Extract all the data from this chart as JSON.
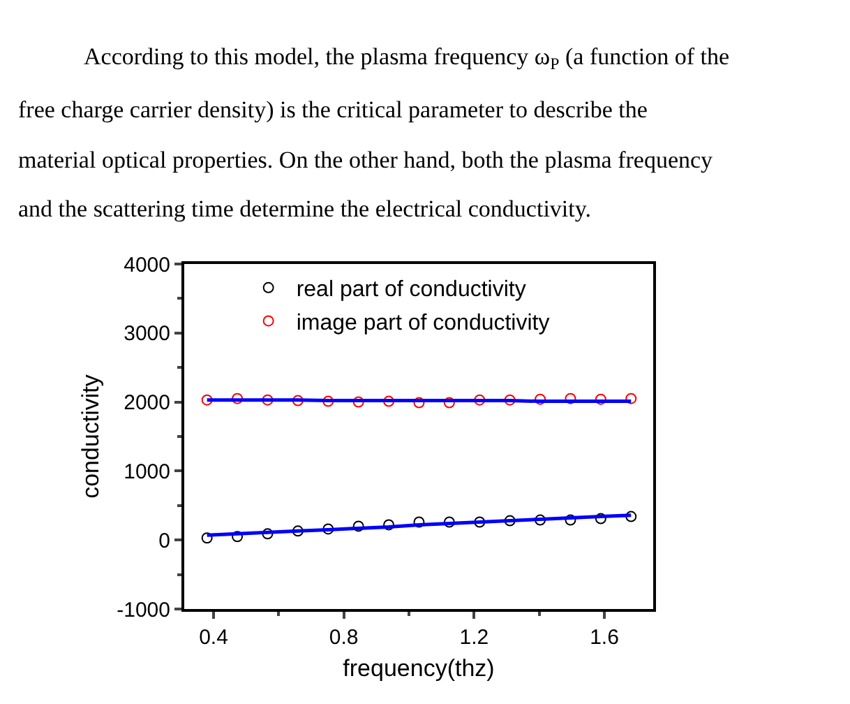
{
  "chart_data": {
    "type": "scatter",
    "xlabel": "frequency(thz)",
    "ylabel": "conductivity",
    "x": [
      0.38,
      0.473,
      0.566,
      0.659,
      0.752,
      0.845,
      0.938,
      1.031,
      1.124,
      1.217,
      1.31,
      1.403,
      1.496,
      1.589,
      1.682
    ],
    "series": [
      {
        "name": "real part of conductivity",
        "color": "#000000",
        "marker": "circle",
        "values": [
          30,
          50,
          90,
          130,
          160,
          200,
          220,
          260,
          260,
          260,
          280,
          290,
          290,
          310,
          340
        ]
      },
      {
        "name": "image part of conductivity",
        "color": "#ff0000",
        "marker": "circle",
        "values": [
          2030,
          2050,
          2030,
          2020,
          2010,
          2000,
          2010,
          1990,
          1990,
          2030,
          2030,
          2040,
          2050,
          2040,
          2050
        ]
      },
      {
        "type": "line",
        "color": "#0000ff",
        "marker": "none",
        "values": [
          70,
          90,
          110,
          130,
          150,
          170,
          190,
          220,
          240,
          260,
          280,
          300,
          320,
          340,
          360
        ]
      },
      {
        "type": "line",
        "color": "#0000ff",
        "marker": "none",
        "values": [
          2030,
          2030,
          2030,
          2030,
          2020,
          2020,
          2020,
          2020,
          2020,
          2020,
          2020,
          2010,
          2010,
          2010,
          2010
        ]
      }
    ],
    "xlim": [
      0.31,
      1.75
    ],
    "xticks": [
      0.4,
      0.8,
      1.2,
      1.6
    ],
    "ylim": [
      -1000,
      4000
    ],
    "yticks": [
      -1000,
      0,
      1000,
      2000,
      3000,
      4000
    ],
    "legend": "top",
    "annotations": [
      "According to this model, the plasma frequency ω$_{P}$ (a function of the",
      "free charge carrier density) is the critical parameter to describe the",
      "material optical properties. On the other hand, both the plasma frequency",
      "and the scattering time determine the electrical conductivity."
    ]
  }
}
